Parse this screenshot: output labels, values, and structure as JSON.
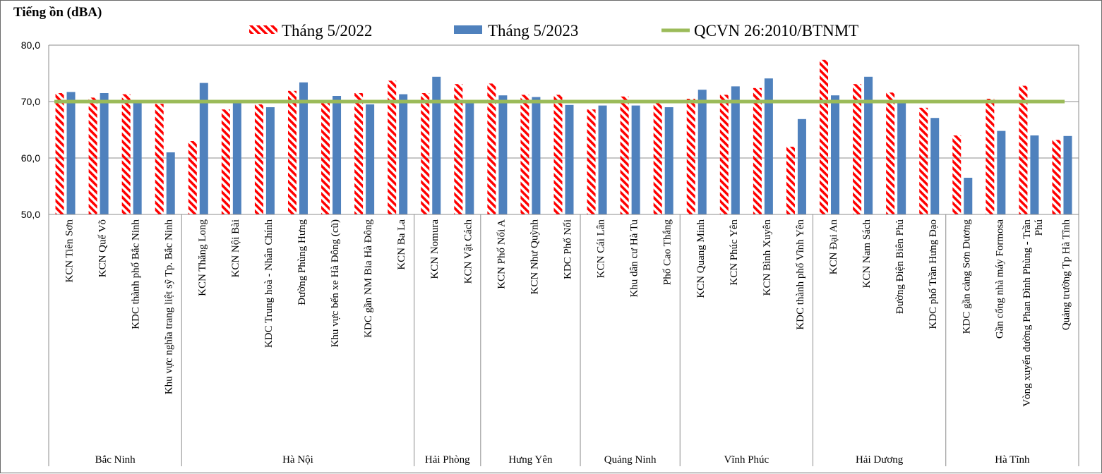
{
  "chart_data": {
    "type": "bar",
    "ylabel": "Tiếng ồn (dBA)",
    "ylim": [
      50,
      80
    ],
    "yticks": [
      "50,0",
      "60,0",
      "70,0",
      "80,0"
    ],
    "ytick_values": [
      50,
      60,
      70,
      80
    ],
    "grid": true,
    "legend_position": "top",
    "categories": [
      "KCN Tiên Sơn",
      "KCN Quế Võ",
      "KDC thành phố Bắc Ninh",
      "Khu vực nghĩa trang liệt sỹ Tp. Bắc Ninh",
      "KCN Thăng Long",
      "KCN Nội Bài",
      "KDC Trung hoà - Nhân Chính",
      "Đường Phùng Hưng",
      "Khu vực bến xe Hà Đông (cũ)",
      "KDC gần NM Bia Hà Đông",
      "KCN Ba La",
      "KCN Nomura",
      "KCN Vật Cách",
      "KCN Phố Nối A",
      "KCN Như Quỳnh",
      "KDC Phố Nối",
      "KCN Cái Lân",
      "Khu dân cư  Hà Tu",
      "Phố Cao Thắng",
      "KCN Quang Minh",
      "KCN Phúc Yên",
      "KCN Bình Xuyên",
      "KDC thành phố Vĩnh Yên",
      "KCN Đại An",
      "KCN Nam Sách",
      "Đường Điện Biên Phủ",
      "KDC phố Trần Hưng Đạo",
      "KDC gần cảng Sơn Dương",
      "Gần cổng nhà máy Formosa",
      "Vòng xuyến đường Phan Đình Phùng - Trần Phú",
      "Quảng trường Tp Hà Tĩnh"
    ],
    "groups": [
      {
        "name": "Bắc Ninh",
        "count": 4
      },
      {
        "name": "Hà Nội",
        "count": 7
      },
      {
        "name": "Hải Phòng",
        "count": 2
      },
      {
        "name": "Hưng Yên",
        "count": 3
      },
      {
        "name": "Quảng Ninh",
        "count": 3
      },
      {
        "name": "Vĩnh Phúc",
        "count": 4
      },
      {
        "name": "Hải Dương",
        "count": 4
      },
      {
        "name": "Hà Tĩnh",
        "count": 4
      }
    ],
    "series": [
      {
        "name": "Tháng 5/2022",
        "style": "hatched",
        "color": "#ff0000",
        "values": [
          71.5,
          70.7,
          71.3,
          69.6,
          63.0,
          68.6,
          69.5,
          71.9,
          70.2,
          71.5,
          73.7,
          71.5,
          73.1,
          73.2,
          71.2,
          71.2,
          68.6,
          70.9,
          69.9,
          70.5,
          71.2,
          72.4,
          62.0,
          77.4,
          73.1,
          71.6,
          68.9,
          64.0,
          70.5,
          72.8,
          63.2
        ]
      },
      {
        "name": "Tháng 5/2023",
        "style": "solid",
        "color": "#4f81bd",
        "values": [
          71.7,
          71.5,
          70.3,
          61.0,
          73.3,
          69.9,
          69.0,
          73.4,
          71.0,
          69.5,
          71.3,
          74.4,
          69.9,
          71.1,
          70.8,
          69.4,
          69.3,
          69.3,
          69.0,
          72.1,
          72.7,
          74.1,
          66.9,
          71.1,
          74.4,
          70.3,
          67.1,
          56.5,
          64.8,
          64.0,
          63.9
        ]
      },
      {
        "name": "QCVN 26:2010/BTNMT",
        "style": "line",
        "color": "#9bbb59",
        "value": 70
      }
    ]
  }
}
